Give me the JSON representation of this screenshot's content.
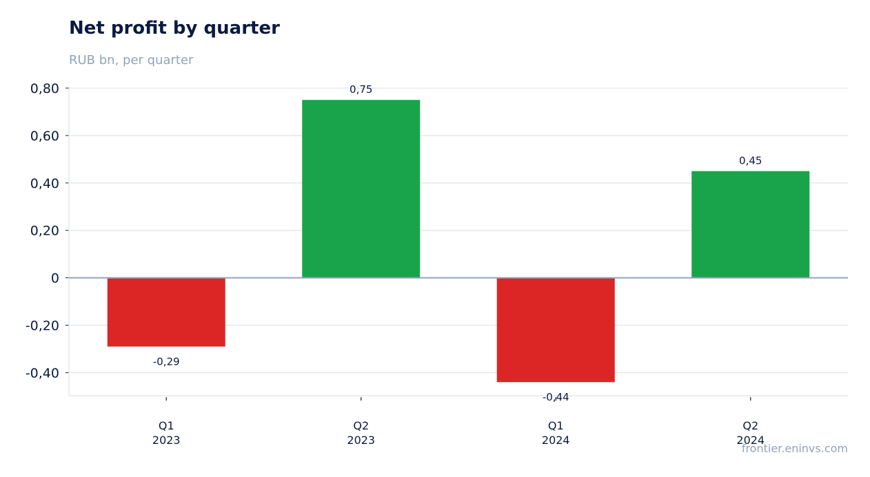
{
  "title": "Net profit by quarter",
  "subtitle": "RUB bn, per quarter",
  "source": "frontier.eninvs.com",
  "colors": {
    "positive": "#19a34a",
    "negative": "#dc2626",
    "grid": "#e5e7eb",
    "zero_line": "#94a3b8",
    "text": "#0c1a3f",
    "muted": "#94a3b8"
  },
  "chart_data": {
    "type": "bar",
    "title": "Net profit by quarter",
    "subtitle": "RUB bn, per quarter",
    "categories": [
      [
        "Q1",
        "2023"
      ],
      [
        "Q2",
        "2023"
      ],
      [
        "Q1",
        "2024"
      ],
      [
        "Q2",
        "2024"
      ]
    ],
    "values": [
      -0.29,
      0.75,
      -0.44,
      0.45
    ],
    "value_labels": [
      "-0,29",
      "0,75",
      "-0,44",
      "0,45"
    ],
    "ylim": [
      -0.5,
      0.8
    ],
    "yticks": [
      0.8,
      0.6,
      0.4,
      0.2,
      0,
      -0.2,
      -0.4
    ],
    "ytick_labels": [
      "0,80",
      "0,60",
      "0,40",
      "0,20",
      "0",
      "-0,20",
      "-0,40"
    ],
    "xlabel": "",
    "ylabel": "",
    "grid": true,
    "legend": "none"
  }
}
